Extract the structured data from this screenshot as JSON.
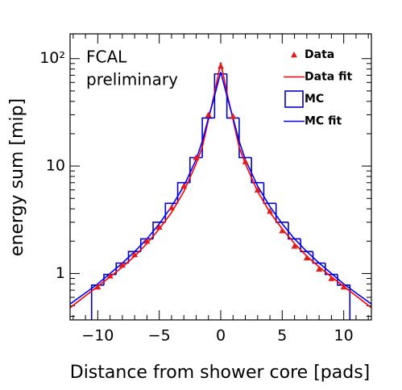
{
  "chart_data": {
    "type": "scatter",
    "x_label": "Distance from shower core [pads]",
    "y_label": "energy sum [mip]",
    "annotations": [
      "FCAL",
      "preliminary"
    ],
    "xlim": [
      -12.25,
      12.25
    ],
    "ylim": [
      0.37,
      170
    ],
    "log_y": true,
    "legend": "upper right",
    "xticks": [
      {
        "value": -10,
        "label": "−10"
      },
      {
        "value": -5,
        "label": "−5"
      },
      0,
      5,
      10
    ],
    "xminorticks": [
      -12,
      -11,
      -9,
      -8,
      -7,
      -6,
      -4,
      -3,
      -2,
      -1,
      1,
      2,
      3,
      4,
      6,
      7,
      8,
      9,
      11,
      12
    ],
    "yticks": [
      1,
      10,
      {
        "value": 100,
        "label": "10²"
      }
    ],
    "yminorticks": [
      0.4,
      0.5,
      0.6,
      0.7,
      0.8,
      0.9,
      2,
      3,
      4,
      5,
      6,
      7,
      8,
      9,
      20,
      30,
      40,
      50,
      60,
      70,
      80,
      90
    ],
    "series": [
      {
        "name": "Data",
        "color": "#e41a1c",
        "style": "triangle",
        "x": [
          -10,
          -9,
          -8,
          -7,
          -6,
          -5,
          -4,
          -3,
          -2,
          -1,
          0,
          1,
          2,
          3,
          4,
          5,
          6,
          7,
          8,
          9,
          10
        ],
        "values": [
          0.75,
          0.95,
          1.2,
          1.5,
          2.0,
          2.7,
          4.1,
          6.5,
          12,
          30,
          85,
          29,
          11,
          6.0,
          3.8,
          2.5,
          1.8,
          1.4,
          1.1,
          0.9,
          0.75
        ]
      },
      {
        "name": "Data fit",
        "color": "#ff0000",
        "style": "line",
        "x": [
          -12.25,
          -11,
          -10,
          -9,
          -8,
          -7,
          -6,
          -5,
          -4,
          -3,
          -2,
          -1.5,
          -1,
          -0.5,
          0,
          0.5,
          1,
          1.5,
          2,
          3,
          4,
          5,
          6,
          7,
          8,
          9,
          10,
          11,
          12.25
        ],
        "values": [
          0.48,
          0.62,
          0.76,
          0.93,
          1.15,
          1.45,
          1.9,
          2.6,
          3.7,
          5.8,
          10.5,
          15,
          27,
          48,
          92,
          48,
          27,
          15,
          10.5,
          5.8,
          3.7,
          2.6,
          1.9,
          1.45,
          1.15,
          0.93,
          0.76,
          0.62,
          0.48
        ]
      },
      {
        "name": "MC",
        "color": "#0000cc",
        "style": "step",
        "bins": [
          -10.5,
          -9.5,
          -8.5,
          -7.5,
          -6.5,
          -5.5,
          -4.5,
          -3.5,
          -2.5,
          -1.5,
          -0.5,
          0.5,
          1.5,
          2.5,
          3.5,
          4.5,
          5.5,
          6.5,
          7.5,
          8.5,
          9.5,
          10.5
        ],
        "values": [
          0.78,
          0.98,
          1.25,
          1.6,
          2.1,
          3.0,
          4.5,
          7.0,
          12,
          28,
          72,
          28,
          12,
          7.0,
          4.5,
          3.0,
          2.1,
          1.6,
          1.25,
          0.98,
          0.78
        ]
      },
      {
        "name": "MC fit",
        "color": "#0000ff",
        "style": "line",
        "x": [
          -12.25,
          -11,
          -10,
          -9,
          -8,
          -7,
          -6,
          -5,
          -4,
          -3,
          -2,
          -1.5,
          -1,
          -0.5,
          0,
          0.5,
          1,
          1.5,
          2,
          3,
          4,
          5,
          6,
          7,
          8,
          9,
          10,
          11,
          12.25
        ],
        "values": [
          0.52,
          0.66,
          0.8,
          1.0,
          1.25,
          1.6,
          2.1,
          2.9,
          4.2,
          6.5,
          11.5,
          17,
          28,
          45,
          75,
          45,
          28,
          17,
          11.5,
          6.5,
          4.2,
          2.9,
          2.1,
          1.6,
          1.25,
          1.0,
          0.8,
          0.66,
          0.52
        ]
      }
    ]
  }
}
